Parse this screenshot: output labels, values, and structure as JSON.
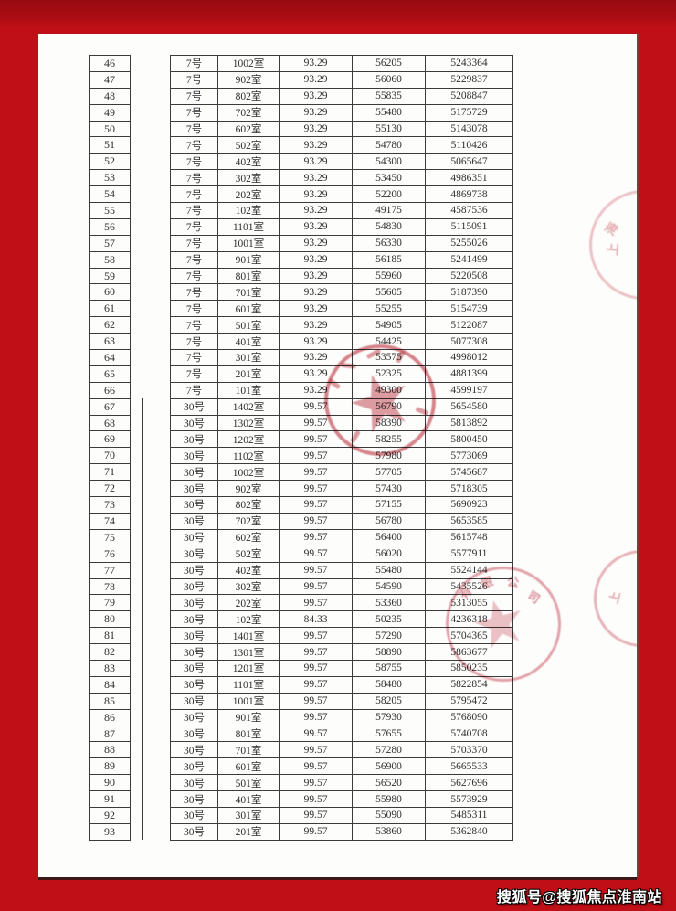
{
  "watermark": {
    "text": "搜狐号@搜狐焦点淮南站"
  },
  "colors": {
    "background_red": "#c00f16",
    "background_red_dark": "#970a10",
    "page": "#fdfdfc",
    "table_border": "#3b3b3b",
    "text": "#2e2e2e",
    "seal_red": "#c64a5c"
  },
  "seals": {
    "company_seal_chars": [
      "有",
      "限",
      "公",
      "司"
    ],
    "edge_top_seal_chars": [
      "上",
      "海"
    ],
    "edge_bottom_seal_chars": [
      "上"
    ]
  },
  "table": {
    "rows": [
      [
        "46",
        "7号",
        "1002室",
        "93.29",
        "56205",
        "5243364"
      ],
      [
        "47",
        "7号",
        "902室",
        "93.29",
        "56060",
        "5229837"
      ],
      [
        "48",
        "7号",
        "802室",
        "93.29",
        "55835",
        "5208847"
      ],
      [
        "49",
        "7号",
        "702室",
        "93.29",
        "55480",
        "5175729"
      ],
      [
        "50",
        "7号",
        "602室",
        "93.29",
        "55130",
        "5143078"
      ],
      [
        "51",
        "7号",
        "502室",
        "93.29",
        "54780",
        "5110426"
      ],
      [
        "52",
        "7号",
        "402室",
        "93.29",
        "54300",
        "5065647"
      ],
      [
        "53",
        "7号",
        "302室",
        "93.29",
        "53450",
        "4986351"
      ],
      [
        "54",
        "7号",
        "202室",
        "93.29",
        "52200",
        "4869738"
      ],
      [
        "55",
        "7号",
        "102室",
        "93.29",
        "49175",
        "4587536"
      ],
      [
        "56",
        "7号",
        "1101室",
        "93.29",
        "54830",
        "5115091"
      ],
      [
        "57",
        "7号",
        "1001室",
        "93.29",
        "56330",
        "5255026"
      ],
      [
        "58",
        "7号",
        "901室",
        "93.29",
        "56185",
        "5241499"
      ],
      [
        "59",
        "7号",
        "801室",
        "93.29",
        "55960",
        "5220508"
      ],
      [
        "60",
        "7号",
        "701室",
        "93.29",
        "55605",
        "5187390"
      ],
      [
        "61",
        "7号",
        "601室",
        "93.29",
        "55255",
        "5154739"
      ],
      [
        "62",
        "7号",
        "501室",
        "93.29",
        "54905",
        "5122087"
      ],
      [
        "63",
        "7号",
        "401室",
        "93.29",
        "54425",
        "5077308"
      ],
      [
        "64",
        "7号",
        "301室",
        "93.29",
        "53575",
        "4998012"
      ],
      [
        "65",
        "7号",
        "201室",
        "93.29",
        "52325",
        "4881399"
      ],
      [
        "66",
        "7号",
        "101室",
        "93.29",
        "49300",
        "4599197"
      ],
      [
        "67",
        "30号",
        "1402室",
        "99.57",
        "56790",
        "5654580"
      ],
      [
        "68",
        "30号",
        "1302室",
        "99.57",
        "58390",
        "5813892"
      ],
      [
        "69",
        "30号",
        "1202室",
        "99.57",
        "58255",
        "5800450"
      ],
      [
        "70",
        "30号",
        "1102室",
        "99.57",
        "57980",
        "5773069"
      ],
      [
        "71",
        "30号",
        "1002室",
        "99.57",
        "57705",
        "5745687"
      ],
      [
        "72",
        "30号",
        "902室",
        "99.57",
        "57430",
        "5718305"
      ],
      [
        "73",
        "30号",
        "802室",
        "99.57",
        "57155",
        "5690923"
      ],
      [
        "74",
        "30号",
        "702室",
        "99.57",
        "56780",
        "5653585"
      ],
      [
        "75",
        "30号",
        "602室",
        "99.57",
        "56400",
        "5615748"
      ],
      [
        "76",
        "30号",
        "502室",
        "99.57",
        "56020",
        "5577911"
      ],
      [
        "77",
        "30号",
        "402室",
        "99.57",
        "55480",
        "5524144"
      ],
      [
        "78",
        "30号",
        "302室",
        "99.57",
        "54590",
        "5435526"
      ],
      [
        "79",
        "30号",
        "202室",
        "99.57",
        "53360",
        "5313055"
      ],
      [
        "80",
        "30号",
        "102室",
        "84.33",
        "50235",
        "4236318"
      ],
      [
        "81",
        "30号",
        "1401室",
        "99.57",
        "57290",
        "5704365"
      ],
      [
        "82",
        "30号",
        "1301室",
        "99.57",
        "58890",
        "5863677"
      ],
      [
        "83",
        "30号",
        "1201室",
        "99.57",
        "58755",
        "5850235"
      ],
      [
        "84",
        "30号",
        "1101室",
        "99.57",
        "58480",
        "5822854"
      ],
      [
        "85",
        "30号",
        "1001室",
        "99.57",
        "58205",
        "5795472"
      ],
      [
        "86",
        "30号",
        "901室",
        "99.57",
        "57930",
        "5768090"
      ],
      [
        "87",
        "30号",
        "801室",
        "99.57",
        "57655",
        "5740708"
      ],
      [
        "88",
        "30号",
        "701室",
        "99.57",
        "57280",
        "5703370"
      ],
      [
        "89",
        "30号",
        "601室",
        "99.57",
        "56900",
        "5665533"
      ],
      [
        "90",
        "30号",
        "501室",
        "99.57",
        "56520",
        "5627696"
      ],
      [
        "91",
        "30号",
        "401室",
        "99.57",
        "55980",
        "5573929"
      ],
      [
        "92",
        "30号",
        "301室",
        "99.57",
        "55090",
        "5485311"
      ],
      [
        "93",
        "30号",
        "201室",
        "99.57",
        "53860",
        "5362840"
      ]
    ]
  }
}
